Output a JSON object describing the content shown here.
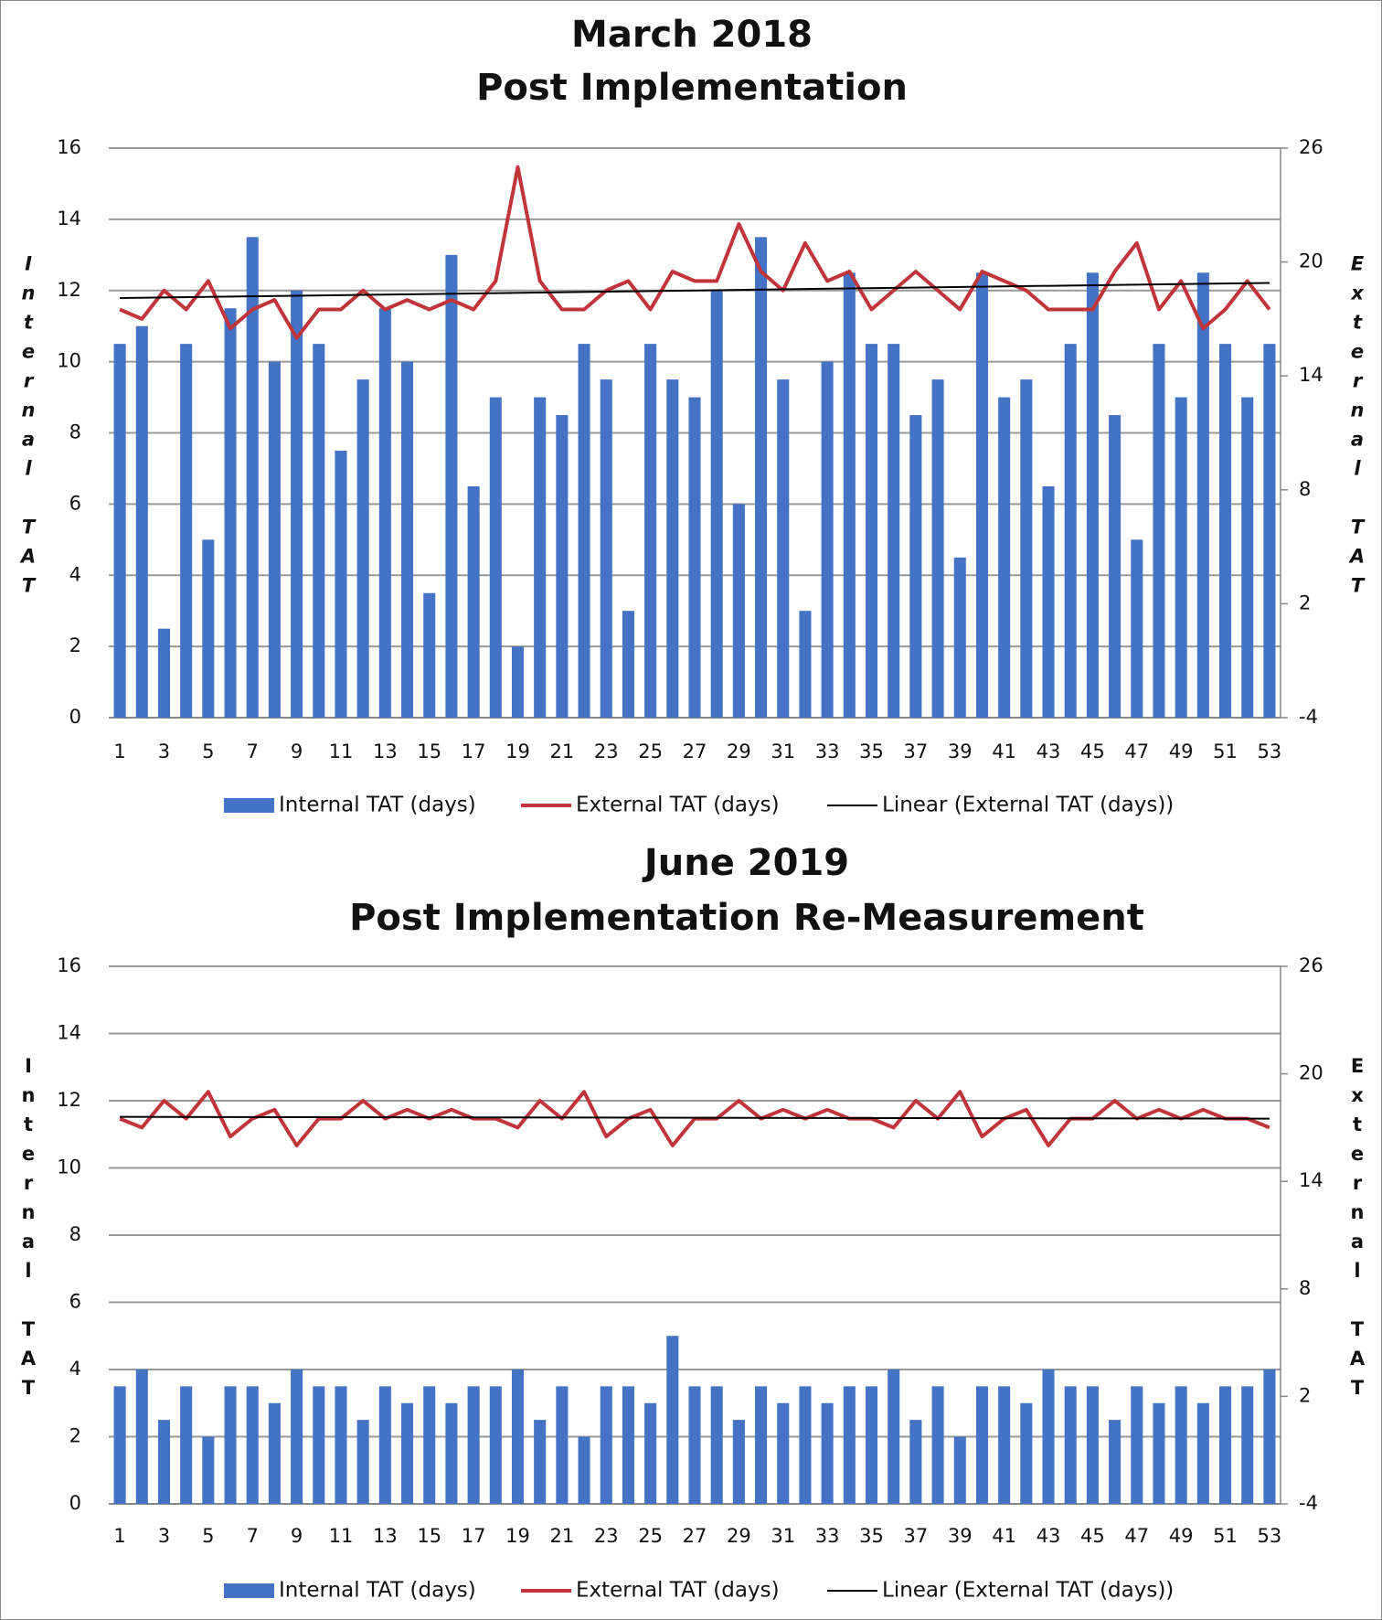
{
  "chart_data": [
    {
      "type": "bar_line",
      "title": "March 2018",
      "subtitle": "Post Implementation",
      "ylabel": "Internal TAT",
      "y2label": "External TAT",
      "ylabel_italic": true,
      "categories": [
        "1",
        null,
        "3",
        null,
        "5",
        null,
        "7",
        null,
        "9",
        null,
        "11",
        null,
        "13",
        null,
        "15",
        null,
        "17",
        null,
        "19",
        null,
        "21",
        null,
        "23",
        null,
        "25",
        null,
        "27",
        null,
        "29",
        null,
        "31",
        null,
        "33",
        null,
        "35",
        null,
        "37",
        null,
        "39",
        null,
        "41",
        null,
        "43",
        null,
        "45",
        null,
        "47",
        null,
        "49",
        null,
        "51",
        null,
        "53"
      ],
      "series": [
        {
          "name": "Internal TAT (days)",
          "type": "bar",
          "color": "#4472c4",
          "values": [
            10.5,
            11,
            2.5,
            10.5,
            5,
            11.5,
            13.5,
            10,
            12,
            10.5,
            7.5,
            9.5,
            11.5,
            10,
            3.5,
            13,
            6.5,
            9,
            2,
            9,
            8.5,
            10.5,
            9.5,
            3,
            10.5,
            9.5,
            9,
            12,
            6,
            13.5,
            9.5,
            3,
            10,
            12.5,
            10.5,
            10.5,
            8.5,
            9.5,
            4.5,
            12.5,
            9,
            9.5,
            6.5,
            10.5,
            12.5,
            8.5,
            5,
            10.5,
            9,
            12.5,
            10.5,
            9,
            10.5
          ]
        },
        {
          "name": "External TAT (days)",
          "type": "line",
          "axis": "y2",
          "color": "#c0343a",
          "values": [
            17.5,
            17,
            18.5,
            17.5,
            19,
            16.5,
            17.5,
            18,
            16,
            17.5,
            17.5,
            18.5,
            17.5,
            18,
            17.5,
            18,
            17.5,
            19,
            25,
            19,
            17.5,
            17.5,
            18.5,
            19,
            17.5,
            19.5,
            19,
            19,
            22,
            19.5,
            18.5,
            21,
            19,
            19.5,
            17.5,
            18.5,
            19.5,
            18.5,
            17.5,
            19.5,
            19,
            18.5,
            17.5,
            17.5,
            17.5,
            19.5,
            21,
            17.5,
            19,
            16.5,
            17.5,
            19,
            17.5
          ]
        }
      ],
      "trend": {
        "name": "Linear (External TAT (days))",
        "axis": "y2",
        "color": "#000000",
        "start": 18.1,
        "end": 18.9
      },
      "ylim": [
        0,
        16
      ],
      "yticks": [
        0,
        2,
        4,
        6,
        8,
        10,
        12,
        14,
        16
      ],
      "y2lim": [
        -4,
        26
      ],
      "y2ticks": [
        -4,
        2,
        8,
        14,
        20,
        26
      ],
      "grid": true,
      "legend": "bottom"
    },
    {
      "type": "bar_line",
      "title": "June 2019",
      "subtitle": "Post Implementation Re-Measurement",
      "ylabel": "Internal TAT",
      "y2label": "External TAT",
      "ylabel_italic": false,
      "categories": [
        "1",
        null,
        "3",
        null,
        "5",
        null,
        "7",
        null,
        "9",
        null,
        "11",
        null,
        "13",
        null,
        "15",
        null,
        "17",
        null,
        "19",
        null,
        "21",
        null,
        "23",
        null,
        "25",
        null,
        "27",
        null,
        "29",
        null,
        "31",
        null,
        "33",
        null,
        "35",
        null,
        "37",
        null,
        "39",
        null,
        "41",
        null,
        "43",
        null,
        "45",
        null,
        "47",
        null,
        "49",
        null,
        "51",
        null,
        "53"
      ],
      "series": [
        {
          "name": "Internal TAT (days)",
          "type": "bar",
          "color": "#4472c4",
          "values": [
            3.5,
            4,
            2.5,
            3.5,
            2,
            3.5,
            3.5,
            3,
            4,
            3.5,
            3.5,
            2.5,
            3.5,
            3,
            3.5,
            3,
            3.5,
            3.5,
            4,
            2.5,
            3.5,
            2,
            3.5,
            3.5,
            3,
            5,
            3.5,
            3.5,
            2.5,
            3.5,
            3,
            3.5,
            3,
            3.5,
            3.5,
            4,
            2.5,
            3.5,
            2,
            3.5,
            3.5,
            3,
            4,
            3.5,
            3.5,
            2.5,
            3.5,
            3,
            3.5,
            3,
            3.5,
            3.5,
            4
          ]
        },
        {
          "name": "External TAT (days)",
          "type": "line",
          "axis": "y2",
          "color": "#c0343a",
          "values": [
            17.5,
            17,
            18.5,
            17.5,
            19,
            16.5,
            17.5,
            18,
            16,
            17.5,
            17.5,
            18.5,
            17.5,
            18,
            17.5,
            18,
            17.5,
            17.5,
            17,
            18.5,
            17.5,
            19,
            16.5,
            17.5,
            18,
            16,
            17.5,
            17.5,
            18.5,
            17.5,
            18,
            17.5,
            18,
            17.5,
            17.5,
            17,
            18.5,
            17.5,
            19,
            16.5,
            17.5,
            18,
            16,
            17.5,
            17.5,
            18.5,
            17.5,
            18,
            17.5,
            18,
            17.5,
            17.5,
            17
          ]
        }
      ],
      "trend": {
        "name": "Linear (External TAT (days))",
        "axis": "y2",
        "color": "#000000",
        "start": 17.6,
        "end": 17.5
      },
      "ylim": [
        0,
        16
      ],
      "yticks": [
        0,
        2,
        4,
        6,
        8,
        10,
        12,
        14,
        16
      ],
      "y2lim": [
        -4,
        26
      ],
      "y2ticks": [
        -4,
        2,
        8,
        14,
        20,
        26
      ],
      "grid": true,
      "legend": "bottom"
    }
  ]
}
